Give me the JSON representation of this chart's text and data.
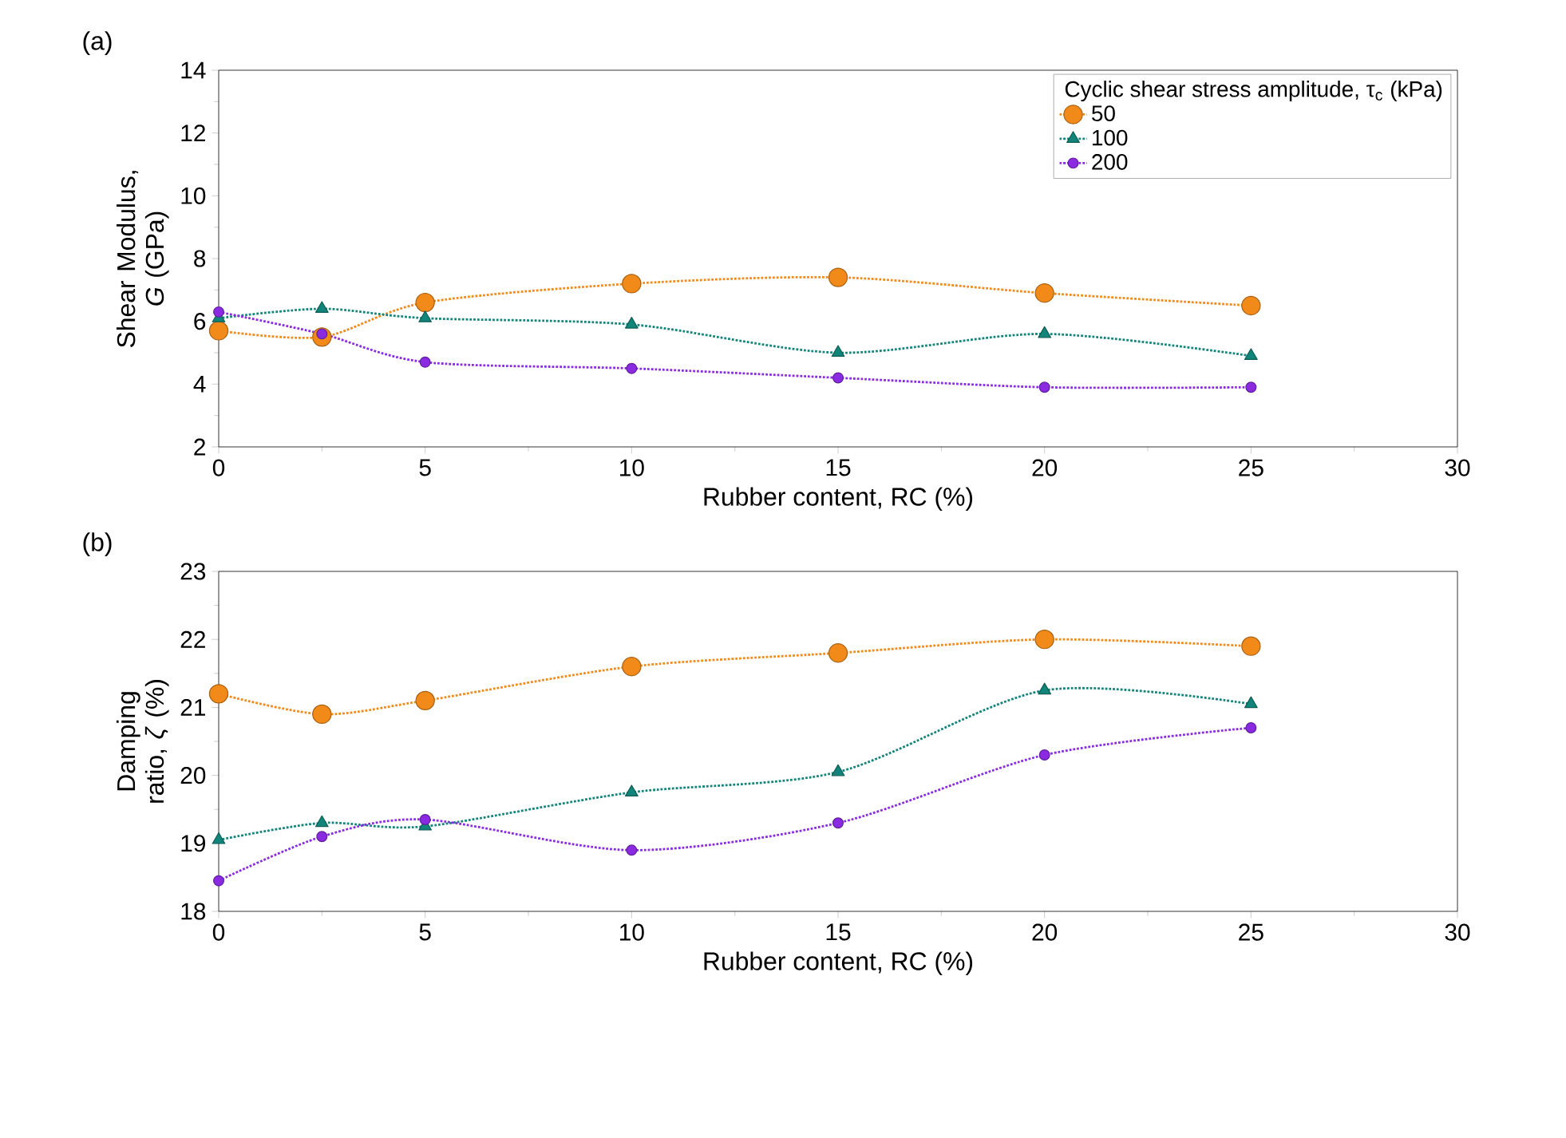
{
  "chart_data": [
    {
      "type": "line",
      "title": "(a)",
      "xlabel": "Rubber content, RC (%)",
      "ylabel": "Shear Modulus, *G* (GPa)",
      "legend_title": "Cyclic shear stress amplitude, τ$_{c}$ (kPa)",
      "legend": "top right",
      "line_style": "dotted",
      "x": [
        0,
        2.5,
        5,
        10,
        15,
        20,
        25
      ],
      "xlim": [
        0,
        30
      ],
      "xticks": [
        0,
        5,
        10,
        15,
        20,
        25,
        30
      ],
      "ylim": [
        2,
        14
      ],
      "yticks": [
        2,
        4,
        6,
        8,
        10,
        12,
        14
      ],
      "series": [
        {
          "name": "50",
          "color": "#f28a1a",
          "marker": "circle",
          "values": [
            5.7,
            5.5,
            6.6,
            7.2,
            7.4,
            6.9,
            6.5
          ]
        },
        {
          "name": "100",
          "color": "#12857a",
          "marker": "triangle",
          "values": [
            6.1,
            6.4,
            6.1,
            5.9,
            5.0,
            5.6,
            4.9
          ]
        },
        {
          "name": "200",
          "color": "#8a2be2",
          "marker": "circle",
          "values": [
            6.3,
            5.6,
            4.7,
            4.5,
            4.2,
            3.9,
            3.9
          ]
        }
      ]
    },
    {
      "type": "line",
      "title": "(b)",
      "xlabel": "Rubber content, RC (%)",
      "ylabel": "Damping ratio, *ζ* (%)",
      "line_style": "dotted",
      "x": [
        0,
        2.5,
        5,
        10,
        15,
        20,
        25
      ],
      "xlim": [
        0,
        30
      ],
      "xticks": [
        0,
        5,
        10,
        15,
        20,
        25,
        30
      ],
      "ylim": [
        18,
        23
      ],
      "yticks": [
        18,
        19,
        20,
        21,
        22,
        23
      ],
      "series": [
        {
          "color": "#f28a1a",
          "marker": "circle",
          "values": [
            21.2,
            20.9,
            21.1,
            21.6,
            21.8,
            22.0,
            21.9
          ]
        },
        {
          "color": "#12857a",
          "marker": "triangle",
          "values": [
            19.05,
            19.3,
            19.25,
            19.75,
            20.05,
            21.25,
            21.05
          ]
        },
        {
          "color": "#8a2be2",
          "marker": "circle",
          "values": [
            18.45,
            19.1,
            19.35,
            18.9,
            19.3,
            20.3,
            20.7
          ]
        }
      ]
    }
  ]
}
